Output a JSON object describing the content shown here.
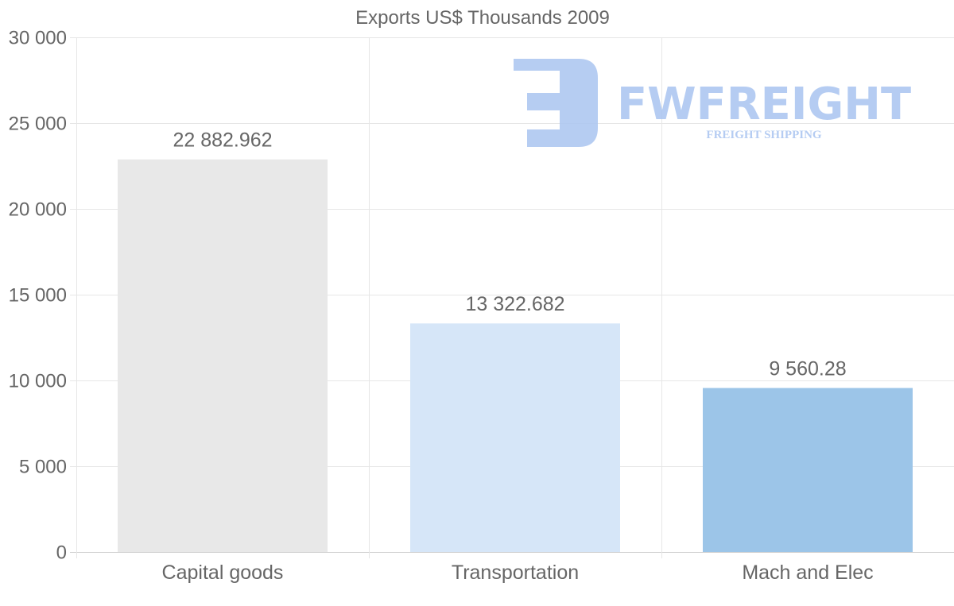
{
  "chart_data": {
    "type": "bar",
    "title": "Exports US$ Thousands 2009",
    "categories": [
      "Capital goods",
      "Transportation",
      "Mach and Elec"
    ],
    "values": [
      22882.962,
      13322.682,
      9560.28
    ],
    "data_labels": [
      "22 882.962",
      "13 322.682",
      "9 560.28"
    ],
    "colors": [
      "#e8e8e8",
      "#d6e6f8",
      "#9cc5e8"
    ],
    "ylim": [
      0,
      30000
    ],
    "yticks": [
      0,
      5000,
      10000,
      15000,
      20000,
      25000,
      30000
    ],
    "ytick_labels": [
      "0",
      "5 000",
      "10 000",
      "15 000",
      "20 000",
      "25 000",
      "30 000"
    ],
    "xlabel": "",
    "ylabel": "",
    "grid": true
  },
  "watermark": {
    "brand": "FWFREIGHT",
    "tagline": "FREIGHT SHIPPING",
    "color": "#a9c4f0"
  }
}
